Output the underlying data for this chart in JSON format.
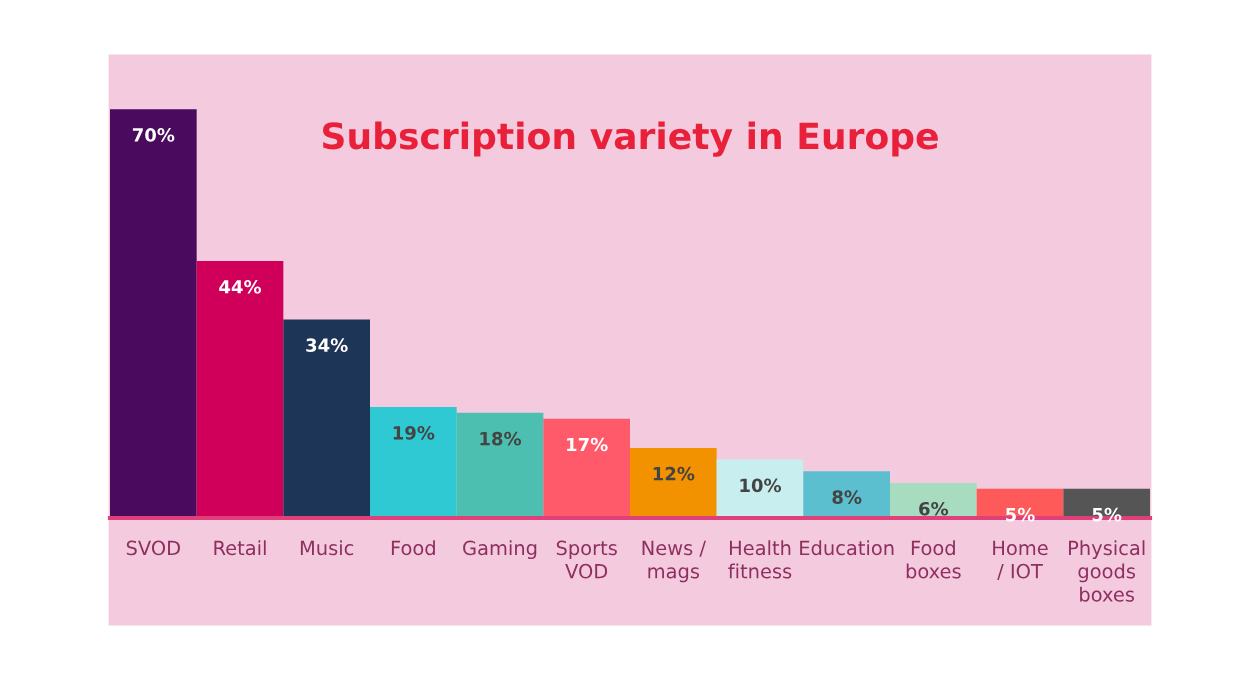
{
  "chart_data": {
    "type": "bar",
    "title": "Subscription variety in Europe",
    "categories": [
      "SVOD",
      "Retail",
      "Music",
      "Food",
      "Gaming",
      "Sports\nVOD",
      "News /\nmags",
      "Health\nfitness",
      "Education",
      "Food\nboxes",
      "Home\n/ IOT",
      "Physical\ngoods\nboxes"
    ],
    "values": [
      70,
      44,
      34,
      19,
      18,
      17,
      12,
      10,
      8,
      6,
      5,
      5
    ],
    "colors": [
      "#4a0a5e",
      "#d0005a",
      "#1d3557",
      "#2ec9d3",
      "#4dbfb0",
      "#ff5a6a",
      "#f39200",
      "#c9eef0",
      "#5bbfd0",
      "#a8dcc0",
      "#ff5a5a",
      "#555555"
    ],
    "value_labels": [
      "70%",
      "44%",
      "34%",
      "19%",
      "18%",
      "17%",
      "12%",
      "10%",
      "8%",
      "6%",
      "5%",
      "5%"
    ],
    "legend": false
  }
}
